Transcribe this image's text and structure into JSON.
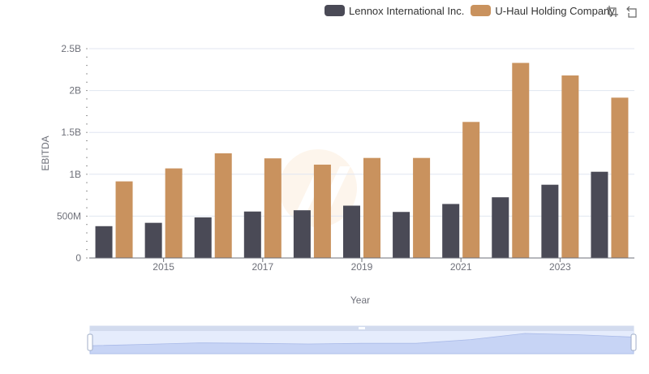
{
  "colors": {
    "lennox": "#4a4a56",
    "uhaul": "#c9925e",
    "grid": "#e0e6f1",
    "axis": "#6e7079"
  },
  "legend": {
    "items": [
      {
        "label": "Lennox International Inc.",
        "color": "#4a4a56"
      },
      {
        "label": "U-Haul Holding Company",
        "color": "#c9925e"
      }
    ]
  },
  "toolbox": {
    "icons": [
      "zoom-icon",
      "zoom-reset-icon"
    ]
  },
  "chart_data": {
    "type": "bar",
    "categories": [
      "2014",
      "2015",
      "2016",
      "2017",
      "2018",
      "2019",
      "2020",
      "2021",
      "2022",
      "2023",
      "2024"
    ],
    "x_tick_labels": [
      "2015",
      "2017",
      "2019",
      "2021",
      "2023"
    ],
    "y_tick_labels": [
      "0",
      "500M",
      "1B",
      "1.5B",
      "2B",
      "2.5B"
    ],
    "y_ticks": [
      0,
      500000000,
      1000000000,
      1500000000,
      2000000000,
      2500000000
    ],
    "ylim": [
      0,
      2500000000
    ],
    "xlabel": "Year",
    "ylabel": "EBITDA",
    "series": [
      {
        "name": "Lennox International Inc.",
        "values": [
          380000000,
          420000000,
          485000000,
          555000000,
          570000000,
          625000000,
          550000000,
          645000000,
          725000000,
          875000000,
          1030000000
        ]
      },
      {
        "name": "U-Haul Holding Company",
        "values": [
          915000000,
          1070000000,
          1250000000,
          1190000000,
          1115000000,
          1195000000,
          1195000000,
          1625000000,
          2330000000,
          2180000000,
          1915000000
        ]
      }
    ],
    "grid": true,
    "legend_position": "top-right",
    "data_zoom": true
  }
}
